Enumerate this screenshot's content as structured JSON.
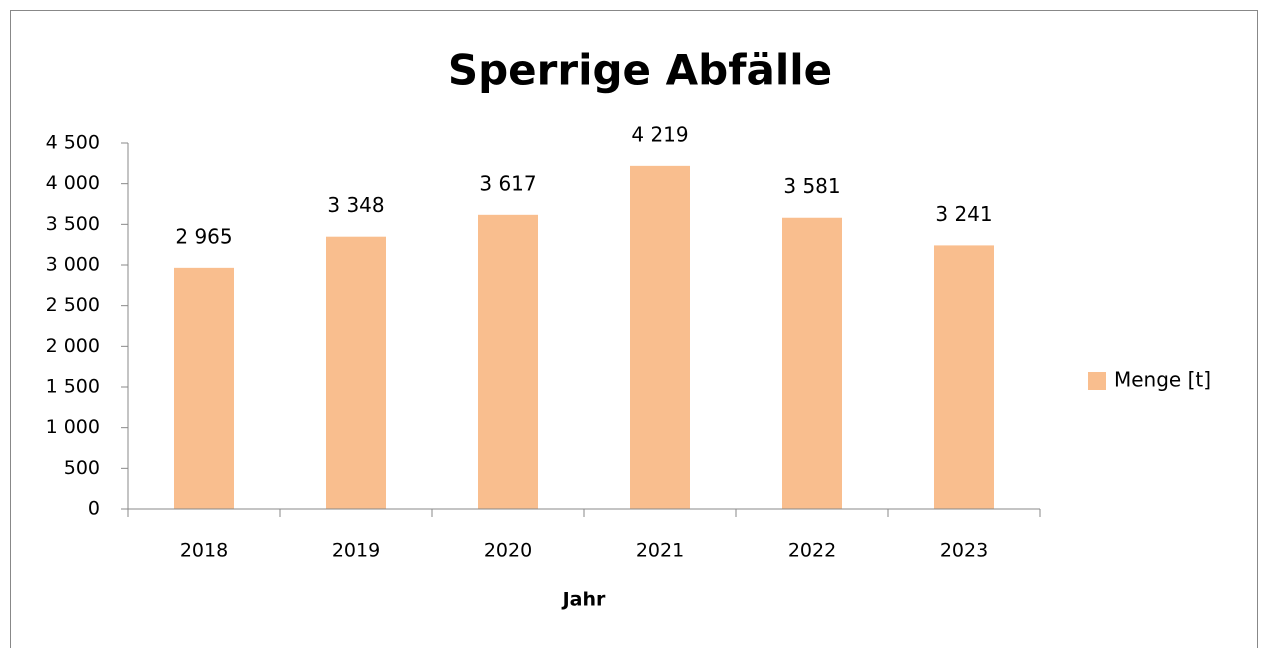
{
  "chart_data": {
    "type": "bar",
    "title": "Sperrige Abfälle",
    "x_label": "Jahr",
    "categories": [
      "2018",
      "2019",
      "2020",
      "2021",
      "2022",
      "2023"
    ],
    "series": [
      {
        "name": "Menge [t]",
        "color": "#f9be8e",
        "values": [
          2965,
          3348,
          3617,
          4219,
          3581,
          3241
        ],
        "value_labels": [
          "2 965",
          "3 348",
          "3 617",
          "4 219",
          "3 581",
          "3 241"
        ]
      }
    ],
    "ylim": [
      0,
      4500
    ],
    "yticks": [
      0,
      500,
      {
        "value": 1000,
        "label": "1 000"
      },
      {
        "value": 1500,
        "label": "1 500"
      },
      {
        "value": 2000,
        "label": "2 000"
      },
      {
        "value": 2500,
        "label": "2 500"
      },
      {
        "value": 3000,
        "label": "3 000"
      },
      {
        "value": 3500,
        "label": "3 500"
      },
      {
        "value": 4000,
        "label": "4 000"
      },
      {
        "value": 4500,
        "label": "4 500"
      }
    ],
    "grid": false,
    "legend": "right"
  }
}
